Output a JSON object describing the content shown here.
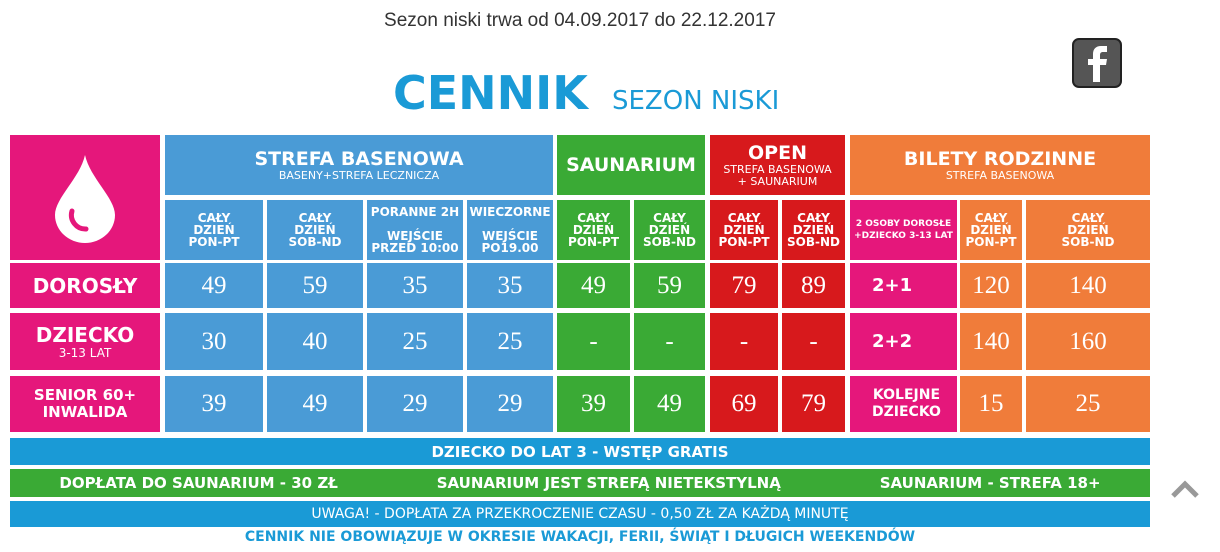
{
  "header": {
    "notice": "Sezon niski trwa od 04.09.2017 do 22.12.2017",
    "title": "CENNIK",
    "subtitle": "SEZON NISKI"
  },
  "table": {
    "groups": [
      {
        "title": "STREFA BASENOWA",
        "subtitle": "BASENY+STREFA LECZNICZA"
      },
      {
        "title": "SAUNARIUM"
      },
      {
        "title": "OPEN",
        "subtitle": "STREFA BASENOWA\n+ SAUNARIUM"
      },
      {
        "title": "BILETY RODZINNE",
        "subtitle": "STREFA BASENOWA"
      }
    ],
    "columns": [
      "CAŁY\nDZIEŃ\nPON-PT",
      "CAŁY\nDZIEŃ\nSOB-ND",
      "PORANNE 2H\n\nWEJŚCIE\nPRZED 10:00",
      "WIECZORNE\n\nWEJŚCIE\nPO19.00",
      "CAŁY\nDZIEŃ\nPON-PT",
      "CAŁY\nDZIEŃ\nSOB-ND",
      "CAŁY\nDZIEŃ\nPON-PT",
      "CAŁY\nDZIEŃ\nSOB-ND",
      "2 OSOBY DOROSŁE\n+DZIECKO 3-13 LAT",
      "CAŁY\nDZIEŃ\nPON-PT",
      "CAŁY\nDZIEŃ\nSOB-ND"
    ],
    "rows": [
      {
        "label": "DOROSŁY",
        "cells": [
          "49",
          "59",
          "35",
          "35",
          "49",
          "59",
          "79",
          "89",
          "2+1",
          "120",
          "140"
        ]
      },
      {
        "label": "DZIECKO",
        "sublabel": "3-13 LAT",
        "cells": [
          "30",
          "40",
          "25",
          "25",
          "-",
          "-",
          "-",
          "-",
          "2+2",
          "140",
          "160"
        ]
      },
      {
        "label": "SENIOR 60+\nINWALIDA",
        "cells": [
          "39",
          "49",
          "29",
          "29",
          "39",
          "49",
          "69",
          "79",
          "KOLEJNE\nDZIECKO",
          "15",
          "25"
        ]
      }
    ]
  },
  "notes": {
    "free": "DZIECKO DO LAT 3 - WSTĘP GRATIS",
    "sauna": [
      "DOPŁATA DO SAUNARIUM - 30 ZŁ",
      "SAUNARIUM JEST STREFĄ NIETEKSTYLNĄ",
      "SAUNARIUM - STREFA 18+"
    ],
    "overtime": "UWAGA! - DOPŁATA ZA PRZEKROCZENIE CZASU - 0,50 ZŁ ZA KAŻDĄ MINUTĘ",
    "validity": "CENNIK NIE OBOWIĄZUJE W OKRESIE WAKACJI, FERII, ŚWIĄT I DŁUGICH WEEKENDÓW"
  }
}
